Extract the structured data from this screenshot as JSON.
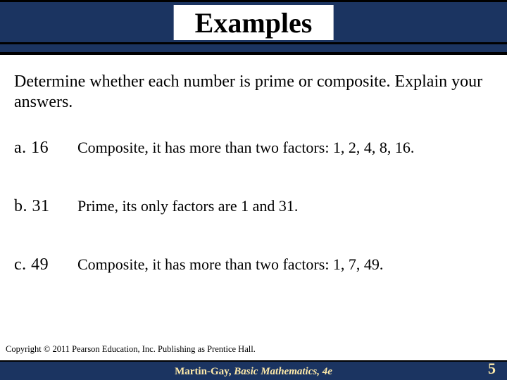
{
  "colors": {
    "header_bg": "#1b3461",
    "footer_bg": "#1b3461",
    "footer_text": "#fde9a9",
    "rule": "#000000",
    "body_bg": "#ffffff",
    "text": "#000000"
  },
  "typography": {
    "family": "Times New Roman",
    "title_size_pt": 30,
    "body_size_pt": 18,
    "answer_size_pt": 17,
    "footer_size_pt": 11,
    "copyright_size_pt": 9
  },
  "slide": {
    "title": "Examples",
    "instructions": "Determine whether each number is prime or composite. Explain your answers.",
    "items": [
      {
        "label": "a.  16",
        "answer": "Composite, it has more than two factors: 1, 2, 4, 8, 16."
      },
      {
        "label": "b.   31",
        "answer": "Prime, its only factors are 1 and 31."
      },
      {
        "label": "c.   49",
        "answer": "Composite, it has more than two factors: 1, 7, 49."
      }
    ],
    "copyright": "Copyright © 2011 Pearson Education, Inc.  Publishing as Prentice Hall.",
    "footer": {
      "author": "Martin-Gay,",
      "book_title": "Basic Mathematics,",
      "edition": "4e"
    },
    "page_number": "5"
  }
}
